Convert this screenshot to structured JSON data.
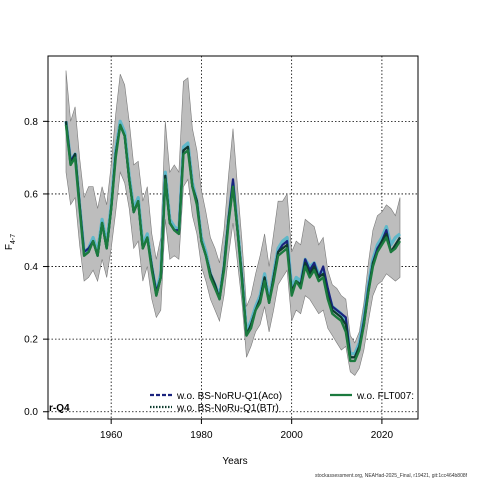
{
  "chart_data": {
    "type": "line",
    "xlabel": "Years",
    "ylabel_base": "F",
    "ylabel_sub": "4-7",
    "xlim": [
      1946,
      2028
    ],
    "ylim": [
      -0.02,
      0.98
    ],
    "xticks": [
      1960,
      1980,
      2000,
      2020
    ],
    "yticks": [
      0.0,
      0.2,
      0.4,
      0.6,
      0.8
    ],
    "ytick_labels": [
      "0.0",
      "0.2",
      "0.4",
      "0.6",
      "0.8"
    ],
    "grid": true,
    "legend_placement": "bottom",
    "corner_label": "r-Q4",
    "x": [
      1950,
      1951,
      1952,
      1953,
      1954,
      1955,
      1956,
      1957,
      1958,
      1959,
      1960,
      1961,
      1962,
      1963,
      1964,
      1965,
      1966,
      1967,
      1968,
      1969,
      1970,
      1971,
      1972,
      1973,
      1974,
      1975,
      1976,
      1977,
      1978,
      1979,
      1980,
      1981,
      1982,
      1983,
      1984,
      1985,
      1986,
      1987,
      1988,
      1989,
      1990,
      1991,
      1992,
      1993,
      1994,
      1995,
      1996,
      1997,
      1998,
      1999,
      2000,
      2001,
      2002,
      2003,
      2004,
      2005,
      2006,
      2007,
      2008,
      2009,
      2010,
      2011,
      2012,
      2013,
      2014,
      2015,
      2016,
      2017,
      2018,
      2019,
      2020,
      2021,
      2022,
      2023,
      2024
    ],
    "confidence_band": {
      "lower": [
        0.66,
        0.57,
        0.59,
        0.46,
        0.36,
        0.37,
        0.39,
        0.36,
        0.42,
        0.37,
        0.45,
        0.55,
        0.66,
        0.63,
        0.56,
        0.45,
        0.47,
        0.36,
        0.4,
        0.31,
        0.26,
        0.28,
        0.53,
        0.42,
        0.43,
        0.42,
        0.62,
        0.64,
        0.54,
        0.49,
        0.4,
        0.36,
        0.31,
        0.28,
        0.25,
        0.32,
        0.43,
        0.52,
        0.41,
        0.3,
        0.15,
        0.18,
        0.22,
        0.24,
        0.29,
        0.22,
        0.28,
        0.35,
        0.37,
        0.39,
        0.25,
        0.28,
        0.27,
        0.32,
        0.31,
        0.29,
        0.27,
        0.28,
        0.23,
        0.21,
        0.19,
        0.17,
        0.18,
        0.11,
        0.1,
        0.12,
        0.17,
        0.25,
        0.32,
        0.35,
        0.36,
        0.38,
        0.37,
        0.36,
        0.37
      ],
      "upper": [
        0.94,
        0.8,
        0.84,
        0.7,
        0.59,
        0.62,
        0.62,
        0.56,
        0.62,
        0.57,
        0.68,
        0.82,
        0.93,
        0.9,
        0.8,
        0.68,
        0.69,
        0.58,
        0.62,
        0.49,
        0.42,
        0.48,
        0.8,
        0.66,
        0.68,
        0.66,
        0.91,
        0.92,
        0.78,
        0.72,
        0.61,
        0.55,
        0.48,
        0.45,
        0.41,
        0.5,
        0.65,
        0.78,
        0.62,
        0.47,
        0.29,
        0.32,
        0.38,
        0.43,
        0.49,
        0.4,
        0.49,
        0.58,
        0.58,
        0.6,
        0.44,
        0.47,
        0.46,
        0.53,
        0.52,
        0.51,
        0.46,
        0.48,
        0.39,
        0.35,
        0.34,
        0.32,
        0.31,
        0.21,
        0.19,
        0.22,
        0.3,
        0.41,
        0.5,
        0.54,
        0.55,
        0.57,
        0.56,
        0.54,
        0.59
      ]
    },
    "series": [
      {
        "name": "w.o. BS-NoRU-Q1(Aco)",
        "color": "#1a237e",
        "style": "dashed",
        "values": [
          0.8,
          0.69,
          0.71,
          0.57,
          0.44,
          0.45,
          0.47,
          0.43,
          0.52,
          0.45,
          0.56,
          0.71,
          0.79,
          0.76,
          0.64,
          0.55,
          0.58,
          0.45,
          0.48,
          0.4,
          0.33,
          0.37,
          0.65,
          0.52,
          0.5,
          0.5,
          0.72,
          0.73,
          0.62,
          0.58,
          0.47,
          0.43,
          0.38,
          0.35,
          0.31,
          0.4,
          0.53,
          0.64,
          0.5,
          0.37,
          0.21,
          0.24,
          0.28,
          0.31,
          0.37,
          0.3,
          0.37,
          0.44,
          0.46,
          0.47,
          0.33,
          0.36,
          0.35,
          0.42,
          0.39,
          0.41,
          0.37,
          0.4,
          0.34,
          0.29,
          0.28,
          0.27,
          0.26,
          0.15,
          0.15,
          0.18,
          0.25,
          0.34,
          0.41,
          0.45,
          0.47,
          0.5,
          0.44,
          0.46,
          0.48
        ]
      },
      {
        "name": "w.o. BS-NoRu-Q1(BTr)",
        "color": "#0d3b2e",
        "style": "dotted",
        "values": [
          0.8,
          0.68,
          0.71,
          0.57,
          0.43,
          0.44,
          0.47,
          0.43,
          0.52,
          0.45,
          0.56,
          0.71,
          0.79,
          0.76,
          0.64,
          0.55,
          0.58,
          0.45,
          0.48,
          0.4,
          0.32,
          0.37,
          0.65,
          0.52,
          0.5,
          0.49,
          0.72,
          0.73,
          0.62,
          0.58,
          0.47,
          0.43,
          0.38,
          0.35,
          0.31,
          0.4,
          0.53,
          0.62,
          0.5,
          0.37,
          0.21,
          0.24,
          0.28,
          0.31,
          0.37,
          0.3,
          0.37,
          0.44,
          0.45,
          0.46,
          0.33,
          0.36,
          0.35,
          0.41,
          0.38,
          0.4,
          0.37,
          0.38,
          0.32,
          0.28,
          0.27,
          0.26,
          0.24,
          0.15,
          0.15,
          0.18,
          0.24,
          0.33,
          0.41,
          0.44,
          0.47,
          0.49,
          0.44,
          0.46,
          0.48
        ]
      },
      {
        "name": "w.o. FLT007:",
        "color": "#1b7a3e",
        "style": "solid",
        "values": [
          0.79,
          0.68,
          0.7,
          0.56,
          0.43,
          0.44,
          0.47,
          0.43,
          0.52,
          0.45,
          0.56,
          0.7,
          0.79,
          0.76,
          0.64,
          0.55,
          0.58,
          0.45,
          0.48,
          0.39,
          0.32,
          0.37,
          0.64,
          0.52,
          0.5,
          0.49,
          0.71,
          0.72,
          0.62,
          0.57,
          0.47,
          0.43,
          0.37,
          0.34,
          0.31,
          0.39,
          0.52,
          0.62,
          0.5,
          0.36,
          0.21,
          0.23,
          0.28,
          0.3,
          0.36,
          0.3,
          0.36,
          0.43,
          0.44,
          0.45,
          0.32,
          0.36,
          0.34,
          0.4,
          0.37,
          0.39,
          0.36,
          0.37,
          0.31,
          0.27,
          0.26,
          0.25,
          0.22,
          0.14,
          0.14,
          0.17,
          0.24,
          0.33,
          0.4,
          0.44,
          0.46,
          0.48,
          0.44,
          0.45,
          0.47
        ]
      }
    ],
    "comparison_line": {
      "color": "#5fb8c9",
      "values": [
        0.8,
        0.69,
        0.71,
        0.57,
        0.44,
        0.45,
        0.48,
        0.44,
        0.53,
        0.46,
        0.57,
        0.72,
        0.8,
        0.77,
        0.65,
        0.56,
        0.59,
        0.46,
        0.49,
        0.4,
        0.33,
        0.38,
        0.66,
        0.53,
        0.51,
        0.5,
        0.73,
        0.74,
        0.63,
        0.58,
        0.48,
        0.44,
        0.38,
        0.35,
        0.32,
        0.4,
        0.53,
        0.63,
        0.51,
        0.37,
        0.22,
        0.25,
        0.29,
        0.32,
        0.38,
        0.31,
        0.38,
        0.45,
        0.47,
        0.48,
        0.34,
        0.37,
        0.36,
        0.42,
        0.4,
        0.41,
        0.38,
        0.39,
        0.33,
        0.29,
        0.28,
        0.27,
        0.25,
        0.16,
        0.16,
        0.19,
        0.26,
        0.35,
        0.42,
        0.46,
        0.48,
        0.51,
        0.46,
        0.48,
        0.49
      ]
    }
  },
  "footer_note": "stockassessment.org, NEAHad-2025_Final, r19421, git:1cc464b808f"
}
